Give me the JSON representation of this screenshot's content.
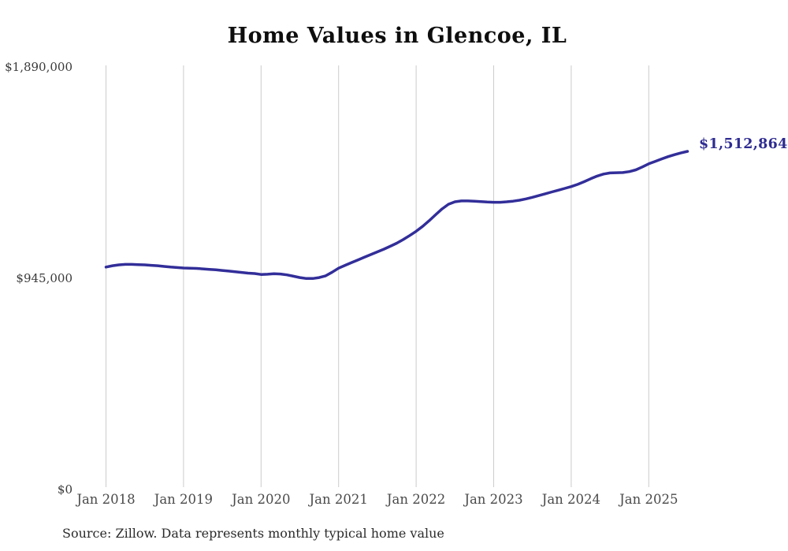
{
  "title": "Home Values in Glencoe, IL",
  "source_note": "Source: Zillow. Data represents monthly typical home value",
  "colors": {
    "line": "#322e99",
    "annotation": "#2e2b91",
    "grid": "#cccccc",
    "y_label": "#3a3a3a",
    "x_label": "#4a4a4a"
  },
  "chart_data": {
    "type": "line",
    "title": "Home Values in Glencoe, IL",
    "x_start": "2018-01",
    "x_interval": "month",
    "x_end": "2025-07",
    "ylim": [
      0,
      1890000
    ],
    "grid": "vertical-only",
    "legend": "none",
    "series": [
      {
        "name": "Monthly typical home value",
        "values": [
          995000,
          1001000,
          1005000,
          1007000,
          1007000,
          1006000,
          1005000,
          1003000,
          1001000,
          998000,
          995000,
          993000,
          991000,
          990000,
          989000,
          987000,
          985000,
          983000,
          980000,
          977000,
          974000,
          971000,
          968000,
          966000,
          962000,
          963000,
          965000,
          964000,
          960000,
          954000,
          948000,
          944000,
          944000,
          948000,
          956000,
          972000,
          990000,
          1003000,
          1015000,
          1027000,
          1039000,
          1051000,
          1063000,
          1075000,
          1088000,
          1102000,
          1118000,
          1136000,
          1155000,
          1177000,
          1202000,
          1229000,
          1255000,
          1276000,
          1287000,
          1291000,
          1291000,
          1290000,
          1288000,
          1286000,
          1285000,
          1285000,
          1287000,
          1290000,
          1294000,
          1300000,
          1307000,
          1315000,
          1323000,
          1331000,
          1339000,
          1347000,
          1355000,
          1365000,
          1377000,
          1390000,
          1402000,
          1411000,
          1416000,
          1417000,
          1418000,
          1422000,
          1430000,
          1443000,
          1457000,
          1468000,
          1479000,
          1489000,
          1498000,
          1506000,
          1512864
        ]
      }
    ],
    "x_ticks": [
      {
        "label": "Jan 2018",
        "month_index": 0
      },
      {
        "label": "Jan 2019",
        "month_index": 12
      },
      {
        "label": "Jan 2020",
        "month_index": 24
      },
      {
        "label": "Jan 2021",
        "month_index": 36
      },
      {
        "label": "Jan 2022",
        "month_index": 48
      },
      {
        "label": "Jan 2023",
        "month_index": 60
      },
      {
        "label": "Jan 2024",
        "month_index": 72
      },
      {
        "label": "Jan 2025",
        "month_index": 84
      }
    ],
    "y_ticks": [
      {
        "label": "$0",
        "value": 0
      },
      {
        "label": "$945,000",
        "value": 945000
      },
      {
        "label": "$1,890,000",
        "value": 1890000
      }
    ],
    "annotation": {
      "text": "$1,512,864",
      "value": 1512864,
      "position": "line-end"
    }
  }
}
